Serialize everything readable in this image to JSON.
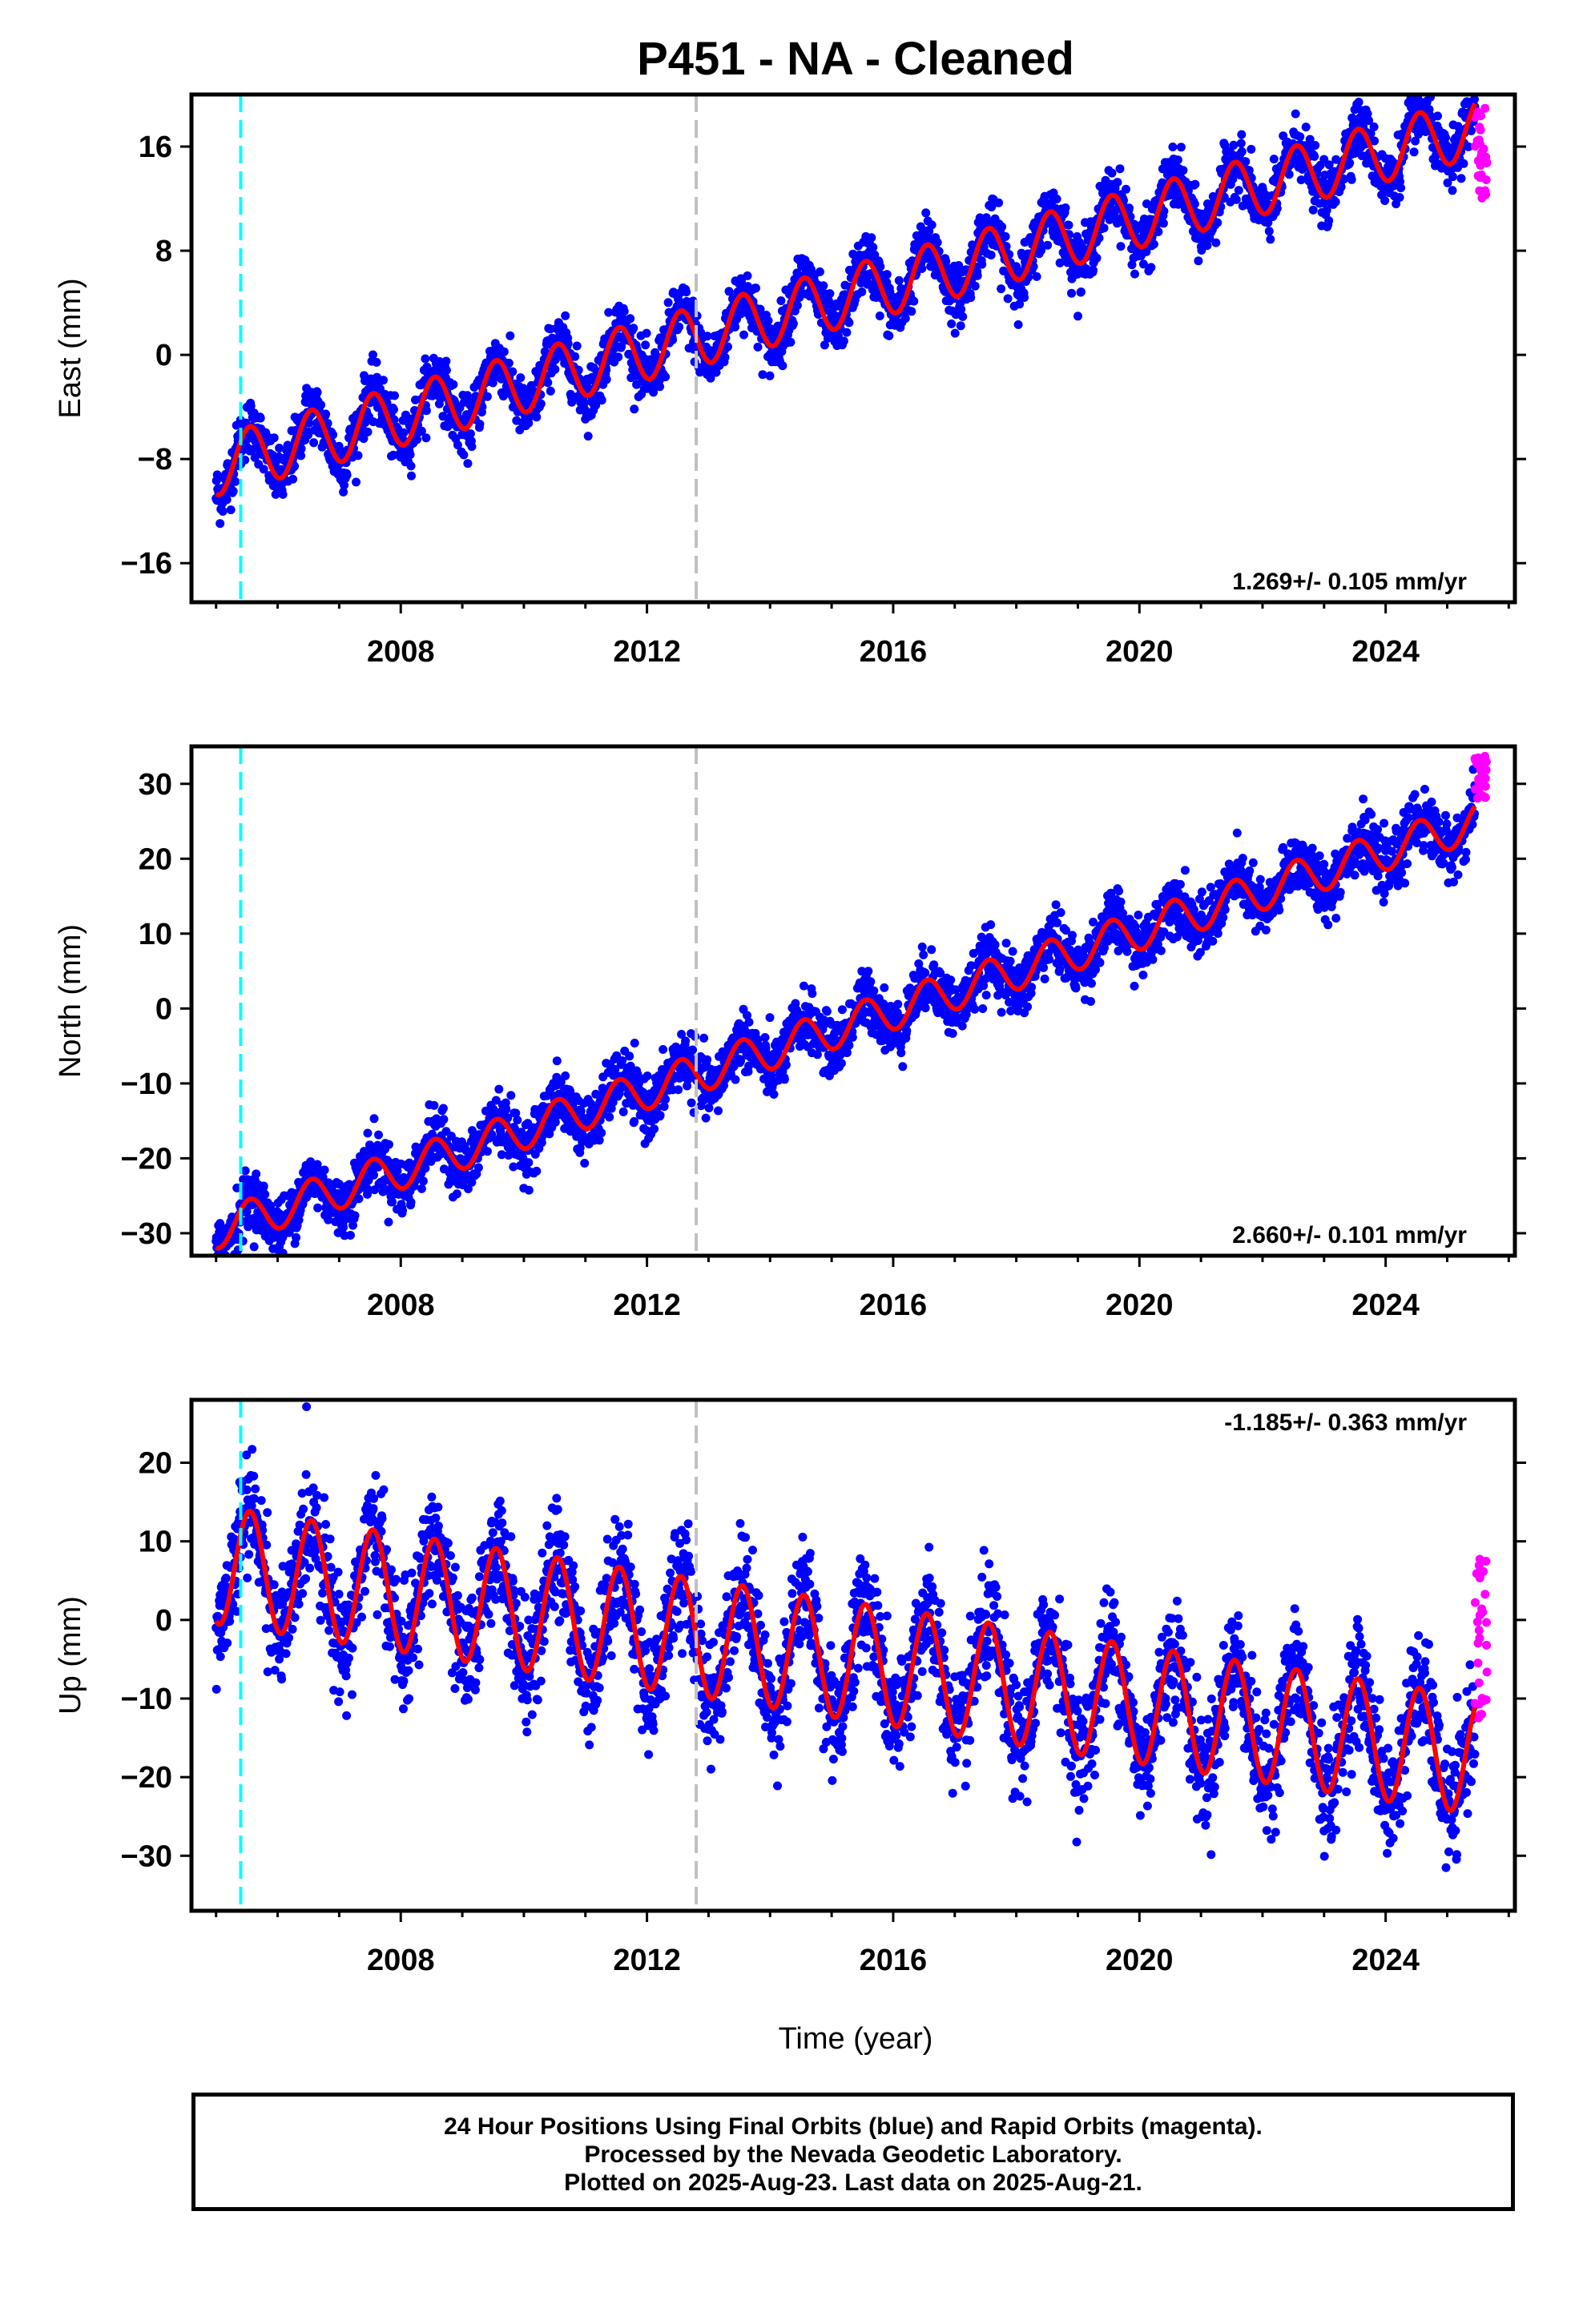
{
  "title": "P451  - NA - Cleaned",
  "colors": {
    "final_orbits": "#0000ff",
    "rapid_orbits": "#ff00ff",
    "model_fit": "#ff0000",
    "antenna_change": "#00ffff",
    "equipment_change": "#c0c0c0"
  },
  "footer": {
    "line1": "24 Hour Positions Using Final Orbits (blue) and Rapid Orbits (magenta).",
    "line2": "Processed by the Nevada Geodetic Laboratory.",
    "line3": "Plotted on 2025-Aug-23. Last data on 2025-Aug-21."
  },
  "chart_data": [
    {
      "type": "scatter",
      "component": "East",
      "ylabel": "East (mm)",
      "xlabel": "",
      "rate": "1.269+/- 0.105 mm/yr",
      "xlim": [
        2004.6,
        2026.1
      ],
      "ylim": [
        -19,
        20
      ],
      "xticks": [
        2008,
        2012,
        2016,
        2020,
        2024
      ],
      "yticks": [
        -16,
        -8,
        0,
        8,
        16
      ],
      "vlines": [
        {
          "x": 2005.4,
          "color": "cyan"
        },
        {
          "x": 2012.8,
          "color": "gray"
        }
      ],
      "model": {
        "t0": 2005.0,
        "y0": -8.5,
        "rate": 1.269,
        "seasonal_amplitude": 2.3,
        "offset_at": 2005.4,
        "offset": -6.0
      },
      "rapid_orbits": {
        "x_start": 2025.45,
        "x_end": 2025.65,
        "y_range": [
          12,
          19
        ]
      },
      "series": [
        {
          "name": "Final Orbits",
          "x_range": [
            2005.0,
            2025.45
          ],
          "approx_start": -8.5,
          "approx_end": 11.5
        }
      ]
    },
    {
      "type": "scatter",
      "component": "North",
      "ylabel": "North (mm)",
      "xlabel": "",
      "rate": "2.660+/- 0.101 mm/yr",
      "xlim": [
        2004.6,
        2026.1
      ],
      "ylim": [
        -33,
        35
      ],
      "xticks": [
        2008,
        2012,
        2016,
        2020,
        2024
      ],
      "yticks": [
        -30,
        -20,
        -10,
        0,
        10,
        20,
        30
      ],
      "vlines": [
        {
          "x": 2005.4,
          "color": "cyan"
        },
        {
          "x": 2012.8,
          "color": "gray"
        }
      ],
      "model": {
        "t0": 2005.0,
        "y0": -29.5,
        "rate": 2.66,
        "seasonal_amplitude": 2.6,
        "offset_at": 2005.4,
        "offset": 4.0
      },
      "rapid_orbits": {
        "x_start": 2025.45,
        "x_end": 2025.65,
        "y_range": [
          28,
          34
        ]
      },
      "series": [
        {
          "name": "Final Orbits",
          "x_range": [
            2005.0,
            2025.45
          ],
          "approx_start": -30,
          "approx_end": 31
        }
      ]
    },
    {
      "type": "scatter",
      "component": "Up",
      "ylabel": "Up (mm)",
      "xlabel": "Time (year)",
      "rate": "-1.185+/- 0.363 mm/yr",
      "xlim": [
        2004.6,
        2026.1
      ],
      "ylim": [
        -37,
        28
      ],
      "xticks": [
        2008,
        2012,
        2016,
        2020,
        2024
      ],
      "yticks": [
        -30,
        -20,
        -10,
        0,
        10,
        20
      ],
      "vlines": [
        {
          "x": 2005.4,
          "color": "cyan"
        },
        {
          "x": 2012.8,
          "color": "gray"
        }
      ],
      "model": {
        "t0": 2005.0,
        "y0": 7.0,
        "rate": -1.185,
        "seasonal_amplitude": 7.5,
        "offset_at": 2005.4,
        "offset": 8.0
      },
      "rapid_orbits": {
        "x_start": 2025.45,
        "x_end": 2025.65,
        "y_range": [
          -13,
          8
        ]
      },
      "series": [
        {
          "name": "Final Orbits",
          "x_range": [
            2005.0,
            2025.45
          ],
          "approx_start": -2,
          "approx_end": -10
        }
      ]
    }
  ]
}
